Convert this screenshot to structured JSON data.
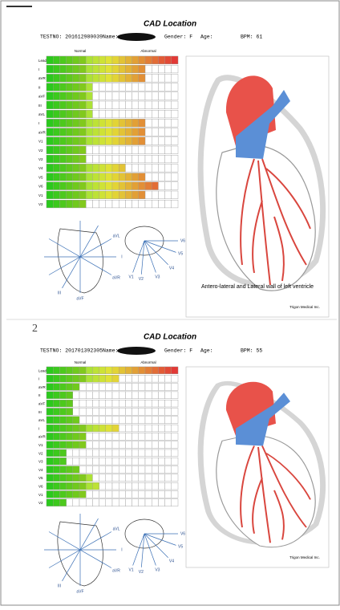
{
  "panels": [
    {
      "title": "CAD Location",
      "testno": "TESTNO: 201612980039",
      "name": "Name:",
      "gender": "Gender: F",
      "age": "Age:",
      "bpm": "BPM: 61",
      "normal": "Normal",
      "abnormal": "Abnormal",
      "rows": [
        {
          "label": "Lead",
          "filled": 20
        },
        {
          "label": "I",
          "filled": 15
        },
        {
          "label": "aVR",
          "filled": 15
        },
        {
          "label": "II",
          "filled": 7
        },
        {
          "label": "aVF",
          "filled": 7
        },
        {
          "label": "III",
          "filled": 7
        },
        {
          "label": "aVL",
          "filled": 7
        },
        {
          "label": "I",
          "filled": 15
        },
        {
          "label": "aVR",
          "filled": 15
        },
        {
          "label": "V1",
          "filled": 15
        },
        {
          "label": "V2",
          "filled": 6
        },
        {
          "label": "V2",
          "filled": 6
        },
        {
          "label": "V4",
          "filled": 12
        },
        {
          "label": "V5",
          "filled": 15
        },
        {
          "label": "V6",
          "filled": 17
        },
        {
          "label": "V1",
          "filled": 15
        },
        {
          "label": "V2",
          "filled": 6
        }
      ],
      "axis_labels": [
        "aVL",
        "I",
        "aVR",
        "III",
        "aVF"
      ],
      "chest_labels": [
        "V6",
        "V5",
        "V4",
        "V3",
        "V2",
        "V1"
      ],
      "caption": "Antero-lateral and Lateral wall of left ventricle",
      "company": "Trigon Medical Inc."
    },
    {
      "page_mark": "2",
      "title": "CAD Location",
      "testno": "TESTNO: 201701392305",
      "name": "Name:",
      "gender": "Gender: F",
      "age": "Age:",
      "bpm": "BPM: 55",
      "normal": "Normal",
      "abnormal": "Abnormal",
      "rows": [
        {
          "label": "Lead",
          "filled": 20
        },
        {
          "label": "I",
          "filled": 11
        },
        {
          "label": "aVR",
          "filled": 5
        },
        {
          "label": "II",
          "filled": 4
        },
        {
          "label": "aVF",
          "filled": 4
        },
        {
          "label": "III",
          "filled": 4
        },
        {
          "label": "aVL",
          "filled": 5
        },
        {
          "label": "I",
          "filled": 11
        },
        {
          "label": "aVR",
          "filled": 6
        },
        {
          "label": "V1",
          "filled": 6
        },
        {
          "label": "V2",
          "filled": 3
        },
        {
          "label": "V3",
          "filled": 3
        },
        {
          "label": "V4",
          "filled": 5
        },
        {
          "label": "V5",
          "filled": 7
        },
        {
          "label": "V6",
          "filled": 8
        },
        {
          "label": "V1",
          "filled": 6
        },
        {
          "label": "V2",
          "filled": 3
        }
      ],
      "axis_labels": [
        "aVL",
        "I",
        "aVR",
        "III",
        "aVF"
      ],
      "chest_labels": [
        "V6",
        "V5",
        "V4",
        "V3",
        "V2",
        "V1"
      ],
      "company": "Trigon Medical Inc."
    }
  ]
}
